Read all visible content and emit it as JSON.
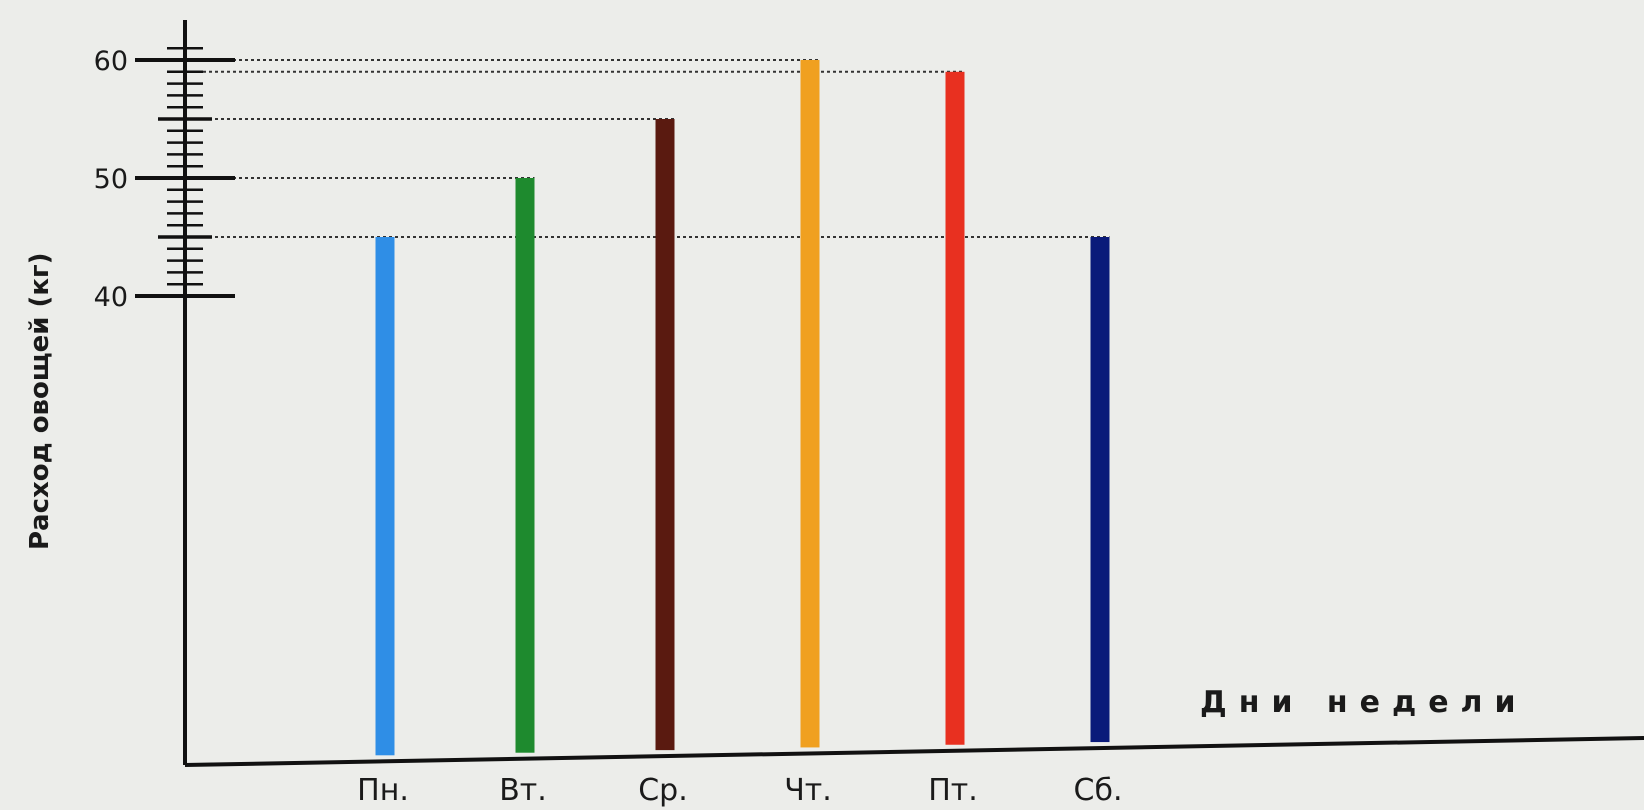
{
  "chart_data": {
    "type": "bar",
    "title": "",
    "xlabel": "Дни недели",
    "ylabel": "Расход овощей (кг)",
    "categories": [
      "Пн.",
      "Вт.",
      "Ср.",
      "Чт.",
      "Пт.",
      "Сб."
    ],
    "values": [
      45,
      50,
      55,
      60,
      59,
      45
    ],
    "colors": [
      "#2f8ee6",
      "#1e8a2e",
      "#5a1a10",
      "#f0a020",
      "#e83020",
      "#0a1a7a"
    ],
    "yticks": [
      40,
      50,
      60
    ],
    "ylim": [
      40,
      62
    ],
    "grid": false,
    "guide_lines": true
  }
}
